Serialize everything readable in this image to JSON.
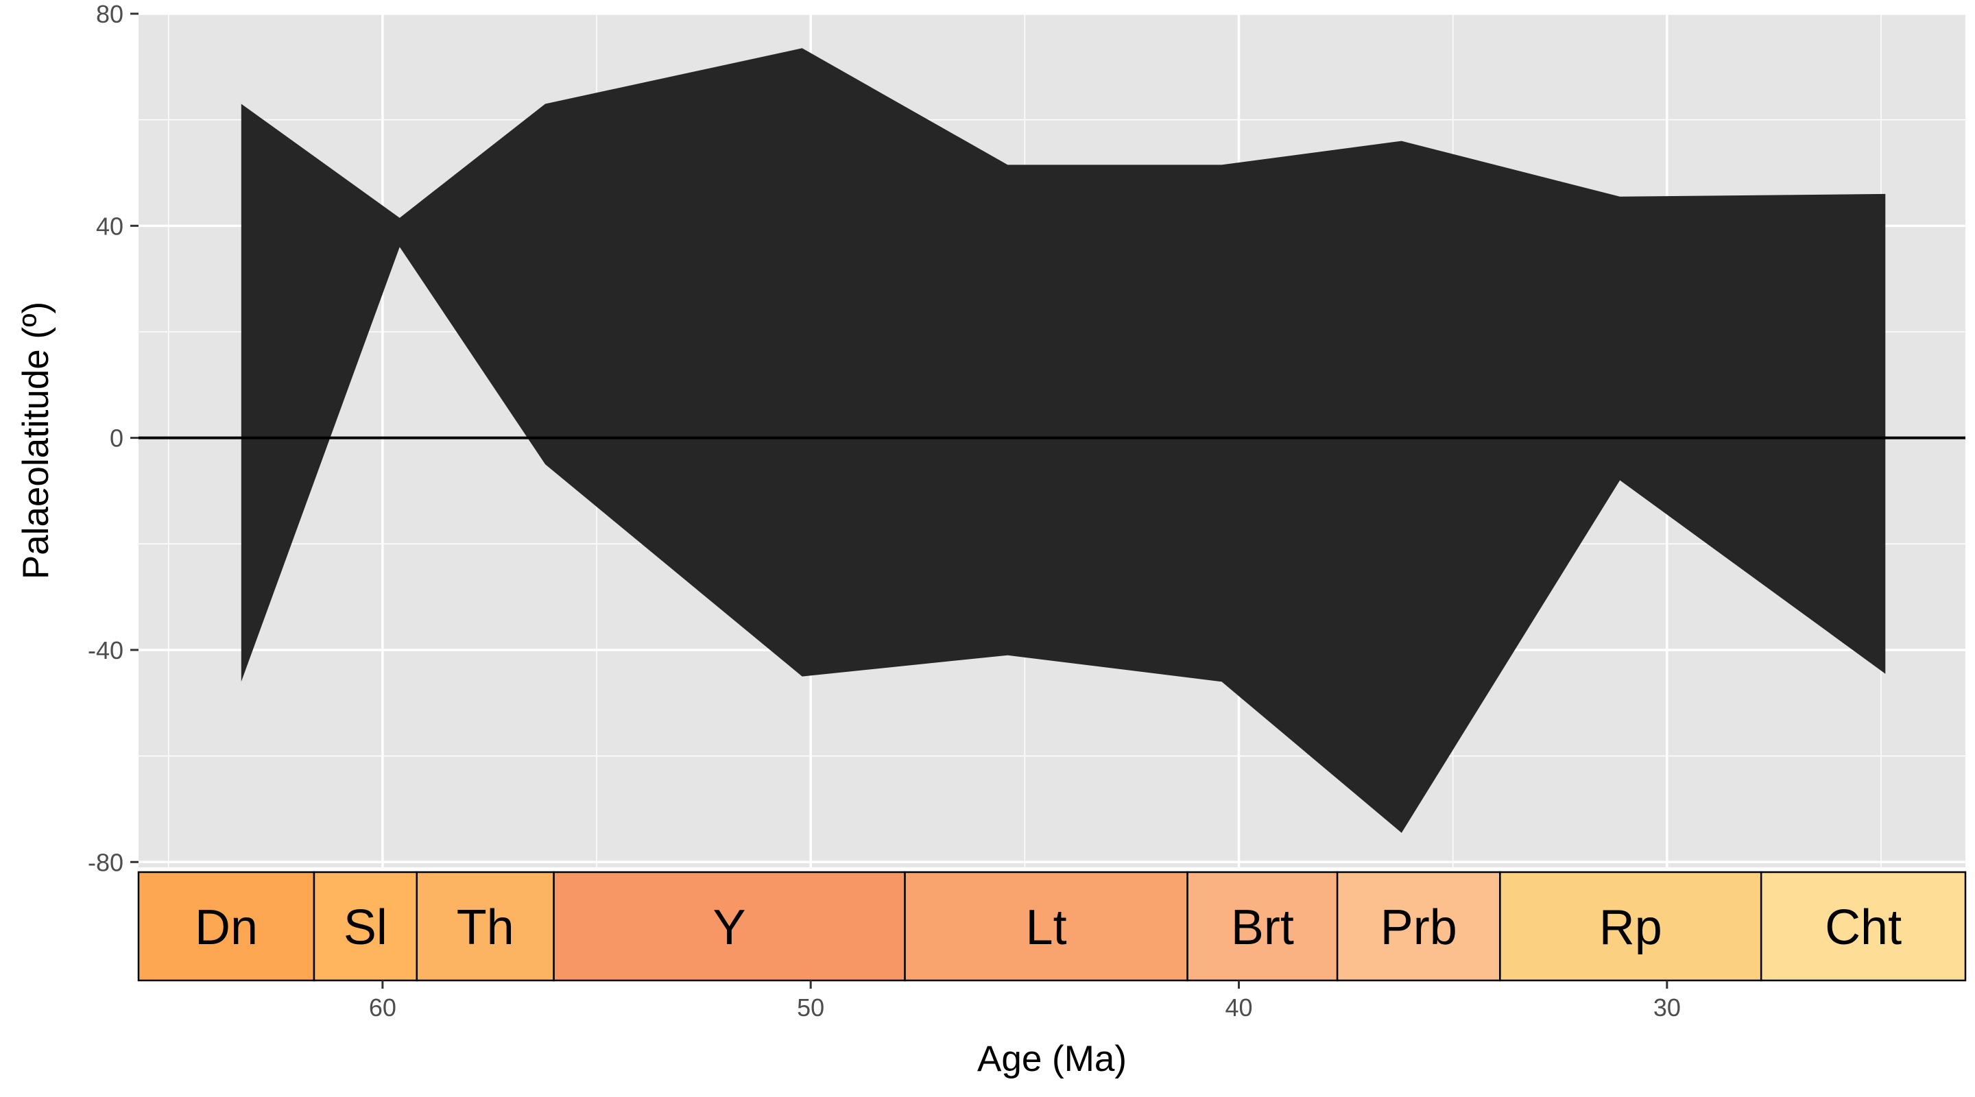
{
  "chart_data": {
    "type": "area",
    "xlabel": "Age (Ma)",
    "ylabel": "Palaeolatitude (º)",
    "xlim": [
      65.7,
      23.03
    ],
    "ylim": [
      -81,
      80
    ],
    "x_reversed": true,
    "x_ticks": [
      60,
      50,
      40,
      30
    ],
    "y_ticks": [
      -80,
      -40,
      0,
      40,
      80
    ],
    "grid": true,
    "reference_line_y": 0,
    "series": [
      {
        "fill_color": "#262626",
        "x": [
          63.3,
          59.6,
          56.2,
          50.2,
          45.4,
          40.4,
          36.2,
          31.1,
          24.9
        ],
        "upper": [
          63,
          41.5,
          63,
          73.5,
          51.5,
          51.5,
          56,
          45.5,
          46
        ],
        "lower": [
          -46,
          36,
          -5,
          -45,
          -41,
          -46,
          -74.5,
          -8,
          -44.5
        ]
      }
    ],
    "stages": [
      {
        "label": "Dn",
        "start": 66.0,
        "end": 61.6,
        "color": "#FDA752"
      },
      {
        "label": "Sl",
        "start": 61.6,
        "end": 59.2,
        "color": "#FEB55E"
      },
      {
        "label": "Th",
        "start": 59.2,
        "end": 56.0,
        "color": "#FDB462"
      },
      {
        "label": "Y",
        "start": 56.0,
        "end": 47.8,
        "color": "#F89766"
      },
      {
        "label": "Lt",
        "start": 47.8,
        "end": 41.2,
        "color": "#F9A46F"
      },
      {
        "label": "Brt",
        "start": 41.2,
        "end": 37.7,
        "color": "#FAB282"
      },
      {
        "label": "Prb",
        "start": 37.7,
        "end": 33.9,
        "color": "#FCC08E"
      },
      {
        "label": "Rp",
        "start": 33.9,
        "end": 27.8,
        "color": "#FBD081"
      },
      {
        "label": "Cht",
        "start": 27.8,
        "end": 23.03,
        "color": "#FEDE97"
      }
    ]
  }
}
